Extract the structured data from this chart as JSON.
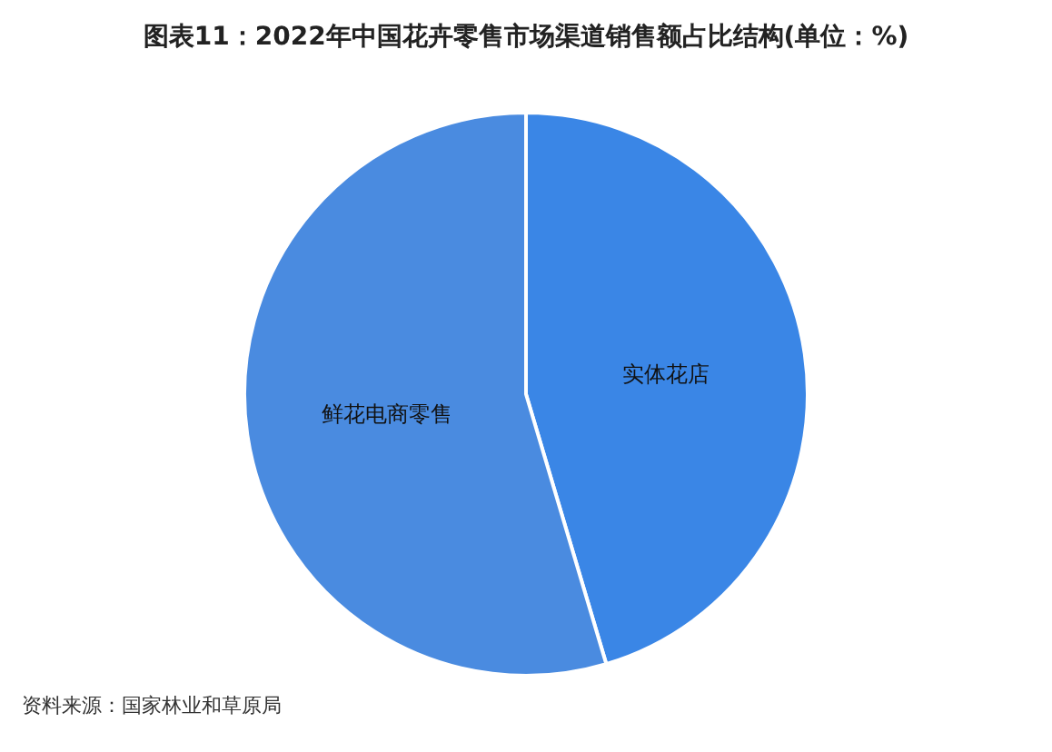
{
  "chart_data": {
    "type": "pie",
    "title": "图表11：2022年中国花卉零售市场渠道销售额占比结构(单位：%)",
    "categories": [
      "实体花店",
      "鲜花电商零售"
    ],
    "values": [
      45.4,
      54.6
    ],
    "colors": [
      "#3a86e6",
      "#4a8be0"
    ],
    "legend": false,
    "annotations": [
      "资料来源：国家林业和草原局"
    ]
  }
}
